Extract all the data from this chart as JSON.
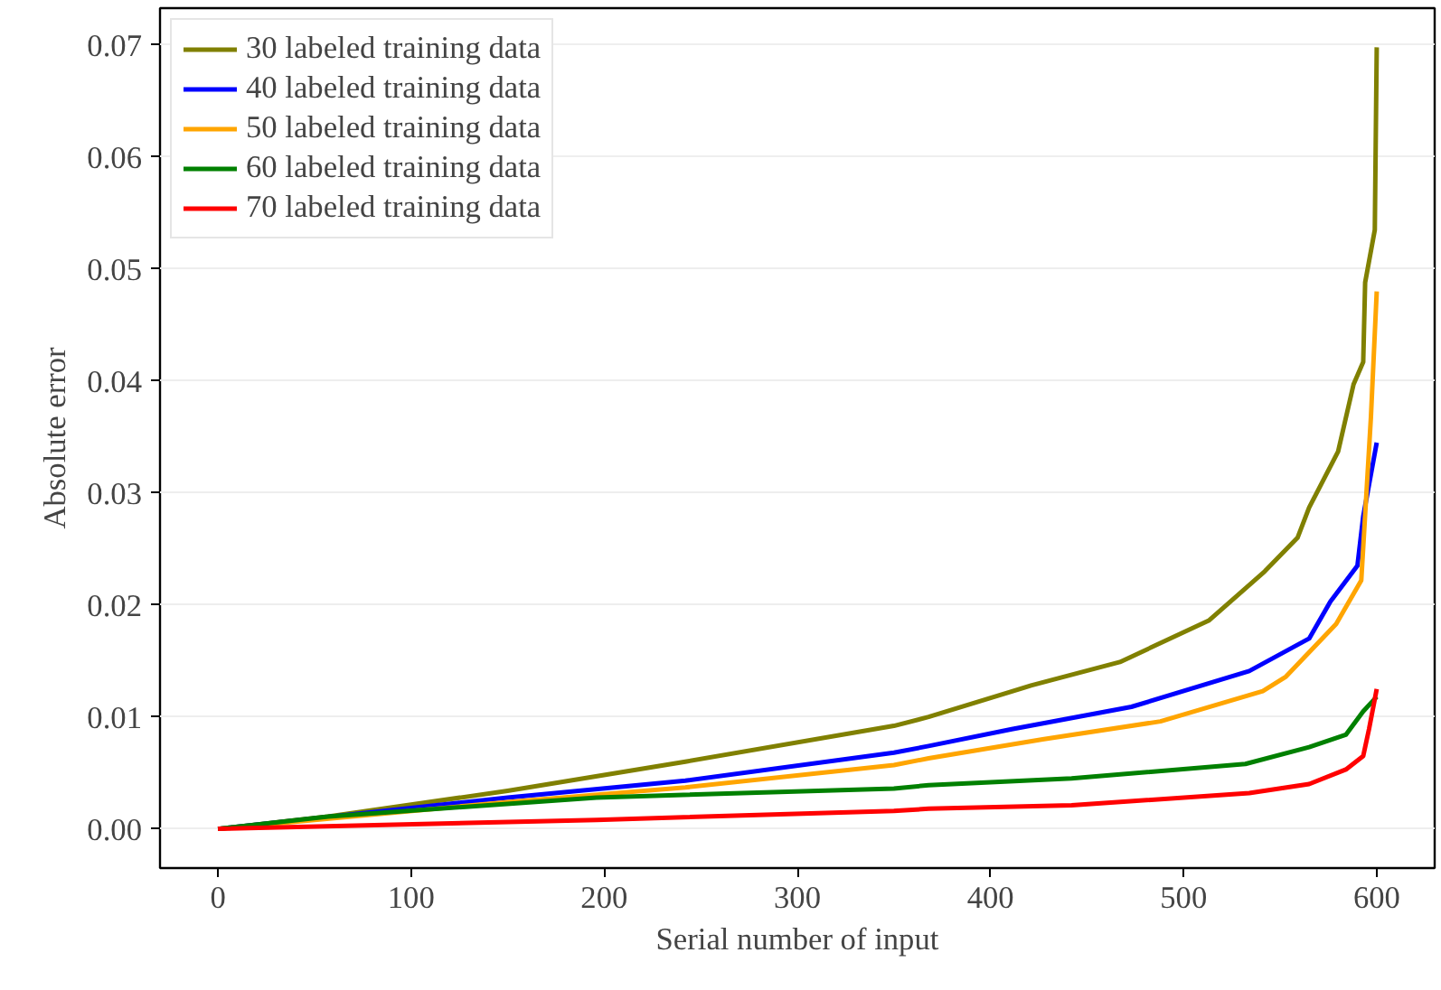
{
  "chart_data": {
    "type": "line",
    "xlabel": "Serial number of input",
    "ylabel": "Absolute error",
    "xlim": [
      -30,
      630
    ],
    "ylim": [
      -0.0035,
      0.0733
    ],
    "xticks": [
      0,
      100,
      200,
      300,
      400,
      500,
      600
    ],
    "yticks": [
      {
        "value": 0,
        "label": "0.00"
      },
      {
        "value": 0.01,
        "label": "0.01"
      },
      {
        "value": 0.02,
        "label": "0.02"
      },
      {
        "value": 0.03,
        "label": "0.03"
      },
      {
        "value": 0.04,
        "label": "0.04"
      },
      {
        "value": 0.05,
        "label": "0.05"
      },
      {
        "value": 0.06,
        "label": "0.06"
      },
      {
        "value": 0.07,
        "label": "0.07"
      }
    ],
    "grid": "y",
    "legend": "top left",
    "marker": "none",
    "line_style": "solid",
    "series": [
      {
        "name": "30 labeled training data",
        "color": "#808000",
        "x": [
          0,
          57,
          150,
          242,
          350,
          368,
          421,
          467,
          513,
          542,
          559,
          565,
          580,
          588,
          593,
          594,
          599,
          600
        ],
        "values": [
          0,
          0.0011,
          0.0034,
          0.006,
          0.0092,
          0.01,
          0.0128,
          0.0149,
          0.0186,
          0.023,
          0.026,
          0.0287,
          0.0337,
          0.0397,
          0.0417,
          0.0488,
          0.0535,
          0.0698
        ]
      },
      {
        "name": "40 labeled training data",
        "color": "#0000ff",
        "x": [
          0,
          150,
          242,
          350,
          368,
          411,
          473,
          534,
          565,
          576,
          590,
          593,
          600
        ],
        "values": [
          0,
          0.0028,
          0.0043,
          0.0068,
          0.0074,
          0.0089,
          0.0109,
          0.0141,
          0.017,
          0.0203,
          0.0235,
          0.0279,
          0.0345
        ]
      },
      {
        "name": "50 labeled training data",
        "color": "#ffa500",
        "x": [
          0,
          150,
          242,
          350,
          368,
          427,
          488,
          541,
          553,
          579,
          592,
          597,
          600
        ],
        "values": [
          0,
          0.0024,
          0.0037,
          0.0057,
          0.0063,
          0.008,
          0.0096,
          0.0123,
          0.0136,
          0.0183,
          0.0222,
          0.0368,
          0.048
        ]
      },
      {
        "name": "60 labeled training data",
        "color": "#008000",
        "x": [
          0,
          57,
          196,
          350,
          368,
          442,
          532,
          565,
          584,
          593,
          600
        ],
        "values": [
          0,
          0.0011,
          0.0028,
          0.0036,
          0.0039,
          0.0045,
          0.0058,
          0.0073,
          0.0084,
          0.0105,
          0.0118
        ]
      },
      {
        "name": "70 labeled training data",
        "color": "#ff0000",
        "x": [
          0,
          196,
          350,
          368,
          442,
          534,
          565,
          584,
          593,
          596,
          600
        ],
        "values": [
          0,
          0.0008,
          0.0016,
          0.0018,
          0.0021,
          0.0032,
          0.004,
          0.0053,
          0.0065,
          0.0089,
          0.0125
        ]
      }
    ]
  }
}
